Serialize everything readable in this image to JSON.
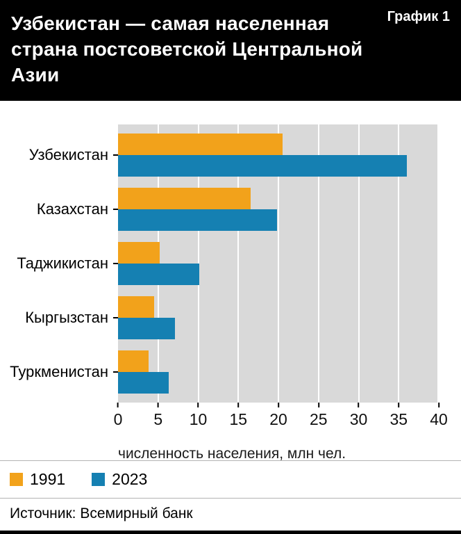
{
  "header": {
    "title": "Узбекистан — самая населенная\nстрана постсоветской Центральной Азии",
    "chart_label": "График 1"
  },
  "chart_data": {
    "type": "bar",
    "orientation": "horizontal",
    "title": "Узбекистан — самая населенная страна постсоветской Центральной Азии",
    "categories": [
      "Узбекистан",
      "Казахстан",
      "Таджикистан",
      "Кыргызстан",
      "Туркменистан"
    ],
    "series": [
      {
        "name": "1991",
        "color": "#F2A21B",
        "values": [
          20.5,
          16.5,
          5.2,
          4.5,
          3.8
        ]
      },
      {
        "name": "2023",
        "color": "#1580B2",
        "values": [
          36.0,
          19.8,
          10.1,
          7.1,
          6.3
        ]
      }
    ],
    "xlabel": "численность населения, млн чел.",
    "xlim": [
      0,
      40
    ],
    "xticks": [
      "0",
      "5",
      "10",
      "15",
      "20",
      "25",
      "30",
      "35",
      "40"
    ],
    "grid": "vertical",
    "gridline_color": "#FFFFFF",
    "plot_background": "#D9D9D9",
    "legend_position": "bottom-left"
  },
  "footer": {
    "source": "Источник: Всемирный банк"
  },
  "colors": {
    "header_background": "#000000",
    "header_text": "#FFFFFF"
  }
}
